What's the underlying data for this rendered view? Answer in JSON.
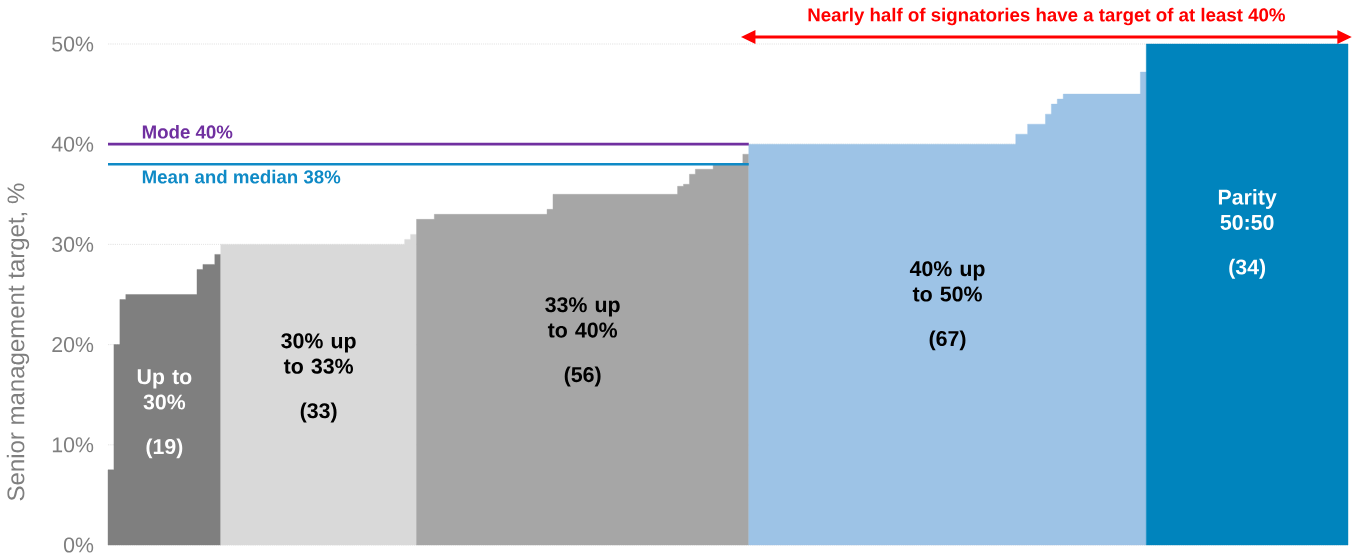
{
  "chart_data": {
    "type": "area",
    "title": "Nearly half of signatories have a target of at least 40%",
    "ylabel": "Senior management target, %",
    "categories": [
      null,
      null,
      null,
      null,
      null,
      null,
      null,
      null,
      null,
      null,
      null,
      null,
      null,
      null,
      null,
      null,
      null,
      null,
      null,
      null,
      null,
      null,
      null,
      null,
      null,
      null,
      null,
      null,
      null,
      null,
      null,
      null,
      null,
      null,
      null,
      null,
      null,
      null,
      null,
      null,
      null,
      null,
      null,
      null,
      null,
      null,
      null,
      null,
      null,
      null,
      null,
      null,
      null,
      null,
      null,
      null,
      null,
      null,
      null,
      null,
      null,
      null,
      null,
      null,
      null,
      null,
      null,
      null,
      null,
      null,
      null,
      null,
      null,
      null,
      null,
      null,
      null,
      null,
      null,
      null,
      null,
      null,
      null,
      null,
      null,
      null,
      null,
      null,
      null,
      null,
      null,
      null,
      null,
      null,
      null,
      null,
      null,
      null,
      null,
      null,
      null,
      null,
      null,
      null,
      null,
      null,
      null,
      null,
      null,
      null,
      null,
      null,
      null,
      null,
      null,
      null,
      null,
      null,
      null,
      null,
      null,
      null,
      null,
      null,
      null,
      null,
      null,
      null,
      null,
      null,
      null,
      null,
      null,
      null,
      null,
      null,
      null,
      null,
      null,
      null,
      null,
      null,
      null,
      null,
      null,
      null,
      null,
      null,
      null,
      null,
      null,
      null,
      null,
      null,
      null,
      null,
      null,
      null,
      null,
      null,
      null,
      null,
      null,
      null,
      null,
      null,
      null,
      null,
      null,
      null,
      null,
      null,
      null,
      null,
      null,
      null,
      null,
      null,
      null,
      null,
      null,
      null,
      null,
      null,
      null,
      null,
      null,
      null,
      null,
      null,
      null,
      null,
      null,
      null,
      null,
      null,
      null,
      null,
      null,
      null,
      null,
      null,
      null,
      null,
      null,
      null,
      null,
      null,
      null
    ],
    "series": [
      {
        "name": "Up to 30%",
        "color": "#7f7f7f",
        "values": [
          7.5,
          20,
          24.5,
          25,
          25,
          25,
          25,
          25,
          25,
          25,
          25,
          25,
          25,
          25,
          25,
          27.5,
          28,
          28,
          29,
          null,
          null,
          null,
          null,
          null,
          null,
          null,
          null,
          null,
          null,
          null,
          null,
          null,
          null,
          null,
          null,
          null,
          null,
          null,
          null,
          null,
          null,
          null,
          null,
          null,
          null,
          null,
          null,
          null,
          null,
          null,
          null,
          null,
          null,
          null,
          null,
          null,
          null,
          null,
          null,
          null,
          null,
          null,
          null,
          null,
          null,
          null,
          null,
          null,
          null,
          null,
          null,
          null,
          null,
          null,
          null,
          null,
          null,
          null,
          null,
          null,
          null,
          null,
          null,
          null,
          null,
          null,
          null,
          null,
          null,
          null,
          null,
          null,
          null,
          null,
          null,
          null,
          null,
          null,
          null,
          null,
          null,
          null,
          null,
          null,
          null,
          null,
          null,
          null,
          null,
          null,
          null,
          null,
          null,
          null,
          null,
          null,
          null,
          null,
          null,
          null,
          null,
          null,
          null,
          null,
          null,
          null,
          null,
          null,
          null,
          null,
          null,
          null,
          null,
          null,
          null,
          null,
          null,
          null,
          null,
          null,
          null,
          null,
          null,
          null,
          null,
          null,
          null,
          null,
          null,
          null,
          null,
          null,
          null,
          null,
          null,
          null,
          null,
          null,
          null,
          null,
          null,
          null,
          null,
          null,
          null,
          null,
          null,
          null,
          null,
          null,
          null,
          null,
          null,
          null,
          null,
          null,
          null,
          null,
          null,
          null,
          null,
          null,
          null,
          null,
          null,
          null,
          null,
          null,
          null,
          null,
          null,
          null,
          null,
          null,
          null,
          null,
          null,
          null,
          null,
          null,
          null,
          null,
          null,
          null,
          null,
          null,
          null,
          null,
          null
        ]
      },
      {
        "name": "30% up to 33%",
        "color": "#d9d9d9",
        "values": [
          null,
          null,
          null,
          null,
          null,
          null,
          null,
          null,
          null,
          null,
          null,
          null,
          null,
          null,
          null,
          null,
          null,
          null,
          null,
          30,
          30,
          30,
          30,
          30,
          30,
          30,
          30,
          30,
          30,
          30,
          30,
          30,
          30,
          30,
          30,
          30,
          30,
          30,
          30,
          30,
          30,
          30,
          30,
          30,
          30,
          30,
          30,
          30,
          30,
          30,
          30.5,
          31,
          null,
          null,
          null,
          null,
          null,
          null,
          null,
          null,
          null,
          null,
          null,
          null,
          null,
          null,
          null,
          null,
          null,
          null,
          null,
          null,
          null,
          null,
          null,
          null,
          null,
          null,
          null,
          null,
          null,
          null,
          null,
          null,
          null,
          null,
          null,
          null,
          null,
          null,
          null,
          null,
          null,
          null,
          null,
          null,
          null,
          null,
          null,
          null,
          null,
          null,
          null,
          null,
          null,
          null,
          null,
          null,
          null,
          null,
          null,
          null,
          null,
          null,
          null,
          null,
          null,
          null,
          null,
          null,
          null,
          null,
          null,
          null,
          null,
          null,
          null,
          null,
          null,
          null,
          null,
          null,
          null,
          null,
          null,
          null,
          null,
          null,
          null,
          null,
          null,
          null,
          null,
          null,
          null,
          null,
          null,
          null,
          null,
          null,
          null,
          null,
          null,
          null,
          null,
          null,
          null,
          null,
          null,
          null,
          null,
          null,
          null,
          null,
          null,
          null,
          null,
          null,
          null,
          null,
          null,
          null,
          null,
          null,
          null,
          null,
          null,
          null,
          null,
          null,
          null,
          null,
          null,
          null,
          null,
          null,
          null,
          null,
          null,
          null,
          null,
          null,
          null,
          null,
          null,
          null,
          null,
          null,
          null,
          null,
          null,
          null,
          null,
          null,
          null,
          null,
          null,
          null,
          null
        ]
      },
      {
        "name": "33% up to 40%",
        "color": "#a6a6a6",
        "values": [
          null,
          null,
          null,
          null,
          null,
          null,
          null,
          null,
          null,
          null,
          null,
          null,
          null,
          null,
          null,
          null,
          null,
          null,
          null,
          null,
          null,
          null,
          null,
          null,
          null,
          null,
          null,
          null,
          null,
          null,
          null,
          null,
          null,
          null,
          null,
          null,
          null,
          null,
          null,
          null,
          null,
          null,
          null,
          null,
          null,
          null,
          null,
          null,
          null,
          null,
          null,
          null,
          32.5,
          32.5,
          32.5,
          33,
          33,
          33,
          33,
          33,
          33,
          33,
          33,
          33,
          33,
          33,
          33,
          33,
          33,
          33,
          33,
          33,
          33,
          33,
          33.5,
          35,
          35,
          35,
          35,
          35,
          35,
          35,
          35,
          35,
          35,
          35,
          35,
          35,
          35,
          35,
          35,
          35,
          35,
          35,
          35,
          35,
          35.8,
          36,
          37,
          37.5,
          37.5,
          37.5,
          38,
          38,
          38,
          38,
          38,
          39,
          null,
          null,
          null,
          null,
          null,
          null,
          null,
          null,
          null,
          null,
          null,
          null,
          null,
          null,
          null,
          null,
          null,
          null,
          null,
          null,
          null,
          null,
          null,
          null,
          null,
          null,
          null,
          null,
          null,
          null,
          null,
          null,
          null,
          null,
          null,
          null,
          null,
          null,
          null,
          null,
          null,
          null,
          null,
          null,
          null,
          null,
          null,
          null,
          null,
          null,
          null,
          null,
          null,
          null,
          null,
          null,
          null,
          null,
          null,
          null,
          null,
          null,
          null,
          null,
          null,
          null,
          null,
          null,
          null,
          null,
          null,
          null,
          null,
          null,
          null,
          null,
          null,
          null,
          null,
          null,
          null,
          null,
          null,
          null,
          null,
          null,
          null,
          null,
          null,
          null,
          null,
          null,
          null,
          null,
          null,
          null,
          null,
          null,
          null,
          null,
          null
        ]
      },
      {
        "name": "40% up to 50%",
        "color": "#9dc3e6",
        "values": [
          null,
          null,
          null,
          null,
          null,
          null,
          null,
          null,
          null,
          null,
          null,
          null,
          null,
          null,
          null,
          null,
          null,
          null,
          null,
          null,
          null,
          null,
          null,
          null,
          null,
          null,
          null,
          null,
          null,
          null,
          null,
          null,
          null,
          null,
          null,
          null,
          null,
          null,
          null,
          null,
          null,
          null,
          null,
          null,
          null,
          null,
          null,
          null,
          null,
          null,
          null,
          null,
          null,
          null,
          null,
          null,
          null,
          null,
          null,
          null,
          null,
          null,
          null,
          null,
          null,
          null,
          null,
          null,
          null,
          null,
          null,
          null,
          null,
          null,
          null,
          null,
          null,
          null,
          null,
          null,
          null,
          null,
          null,
          null,
          null,
          null,
          null,
          null,
          null,
          null,
          null,
          null,
          null,
          null,
          null,
          null,
          null,
          null,
          null,
          null,
          null,
          null,
          null,
          null,
          null,
          null,
          null,
          null,
          40,
          40,
          40,
          40,
          40,
          40,
          40,
          40,
          40,
          40,
          40,
          40,
          40,
          40,
          40,
          40,
          40,
          40,
          40,
          40,
          40,
          40,
          40,
          40,
          40,
          40,
          40,
          40,
          40,
          40,
          40,
          40,
          40,
          40,
          40,
          40,
          40,
          40,
          40,
          40,
          40,
          40,
          40,
          40,
          40,
          41,
          41,
          42,
          42,
          42,
          43,
          44,
          44.5,
          45,
          45,
          45,
          45,
          45,
          45,
          45,
          45,
          45,
          45,
          45,
          45,
          45,
          47.2,
          null,
          null,
          null,
          null,
          null,
          null,
          null,
          null,
          null,
          null,
          null,
          null,
          null,
          null,
          null,
          null,
          null,
          null,
          null,
          null,
          null,
          null,
          null,
          null,
          null,
          null,
          null,
          null,
          null,
          null,
          null,
          null,
          null,
          null
        ]
      },
      {
        "name": "Parity 50:50",
        "color": "#0084bd",
        "values": [
          null,
          null,
          null,
          null,
          null,
          null,
          null,
          null,
          null,
          null,
          null,
          null,
          null,
          null,
          null,
          null,
          null,
          null,
          null,
          null,
          null,
          null,
          null,
          null,
          null,
          null,
          null,
          null,
          null,
          null,
          null,
          null,
          null,
          null,
          null,
          null,
          null,
          null,
          null,
          null,
          null,
          null,
          null,
          null,
          null,
          null,
          null,
          null,
          null,
          null,
          null,
          null,
          null,
          null,
          null,
          null,
          null,
          null,
          null,
          null,
          null,
          null,
          null,
          null,
          null,
          null,
          null,
          null,
          null,
          null,
          null,
          null,
          null,
          null,
          null,
          null,
          null,
          null,
          null,
          null,
          null,
          null,
          null,
          null,
          null,
          null,
          null,
          null,
          null,
          null,
          null,
          null,
          null,
          null,
          null,
          null,
          null,
          null,
          null,
          null,
          null,
          null,
          null,
          null,
          null,
          null,
          null,
          null,
          null,
          null,
          null,
          null,
          null,
          null,
          null,
          null,
          null,
          null,
          null,
          null,
          null,
          null,
          null,
          null,
          null,
          null,
          null,
          null,
          null,
          null,
          null,
          null,
          null,
          null,
          null,
          null,
          null,
          null,
          null,
          null,
          null,
          null,
          null,
          null,
          null,
          null,
          null,
          null,
          null,
          null,
          null,
          null,
          null,
          null,
          null,
          null,
          null,
          null,
          null,
          null,
          null,
          null,
          null,
          null,
          null,
          null,
          null,
          null,
          null,
          null,
          null,
          null,
          null,
          null,
          null,
          50,
          50,
          50,
          50,
          50,
          50,
          50,
          50,
          50,
          50,
          50,
          50,
          50,
          50,
          50,
          50,
          50,
          50,
          50,
          50,
          50,
          50,
          50,
          50,
          50,
          50,
          50,
          50,
          50,
          50,
          50,
          50,
          50,
          50
        ]
      }
    ],
    "ylim": [
      0,
      50
    ],
    "yticks": [
      {
        "value": 0,
        "label": "0%"
      },
      {
        "value": 10,
        "label": "10%"
      },
      {
        "value": 20,
        "label": "20%"
      },
      {
        "value": 30,
        "label": "30%"
      },
      {
        "value": 40,
        "label": "40%"
      },
      {
        "value": 50,
        "label": "50%"
      }
    ],
    "grid": "y",
    "ref_lines": [
      {
        "axis": "y",
        "value": 40,
        "label": "Mode 40%",
        "color": "#7030a0"
      },
      {
        "axis": "y",
        "value": 38,
        "label": "Mean and median 38%",
        "color": "#0f8ac6"
      }
    ],
    "annotations": [
      "(19)",
      "(33)",
      "(56)",
      "(67)",
      "(34)"
    ]
  }
}
